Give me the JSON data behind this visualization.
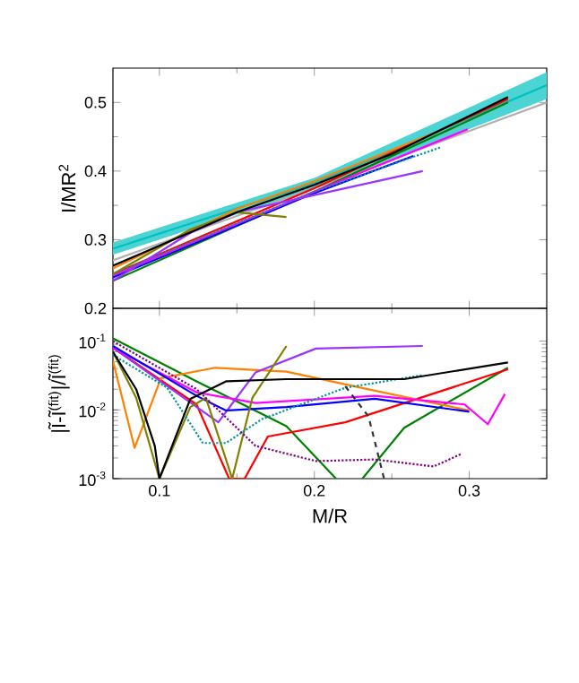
{
  "chart_data": [
    {
      "type": "line",
      "ylabel": "I/MR$^{2}$",
      "xlim": [
        0.07,
        0.35
      ],
      "ylim": [
        0.2,
        0.55
      ],
      "xticks": [
        0.1,
        0.2,
        0.3
      ],
      "yticks": [
        0.2,
        0.3,
        0.4,
        0.5
      ],
      "tick_labels": "y",
      "series": [
        {
          "color": "#00c0c0",
          "x": [
            0.07,
            0.2,
            0.35
          ],
          "values": [
            0.287,
            0.382,
            0.525
          ],
          "lower": [
            0.278,
            0.374,
            0.505
          ],
          "upper": [
            0.296,
            0.39,
            0.544
          ]
        },
        {
          "color": "#b0b0b0",
          "x": [
            0.07,
            0.2,
            0.35
          ],
          "values": [
            0.27,
            0.375,
            0.5
          ]
        },
        {
          "color": "#008000",
          "x": [
            0.07,
            0.2,
            0.325
          ],
          "values": [
            0.24,
            0.37,
            0.5
          ]
        },
        {
          "color": "#ff0000",
          "x": [
            0.07,
            0.2,
            0.325
          ],
          "values": [
            0.25,
            0.375,
            0.505
          ]
        },
        {
          "color": "#ff8000",
          "x": [
            0.07,
            0.15,
            0.2,
            0.28
          ],
          "values": [
            0.258,
            0.345,
            0.385,
            0.458
          ]
        },
        {
          "color": "#0000ff",
          "x": [
            0.07,
            0.2,
            0.264
          ],
          "values": [
            0.245,
            0.368,
            0.422
          ]
        },
        {
          "color": "#ff00ff",
          "x": [
            0.07,
            0.2,
            0.299
          ],
          "values": [
            0.248,
            0.37,
            0.461
          ]
        },
        {
          "color": "#009999",
          "line_style": "dotted",
          "x": [
            0.07,
            0.2,
            0.282
          ],
          "values": [
            0.25,
            0.37,
            0.435
          ]
        },
        {
          "color": "#9933ff",
          "x": [
            0.07,
            0.12,
            0.15,
            0.2,
            0.27
          ],
          "values": [
            0.24,
            0.31,
            0.34,
            0.365,
            0.4
          ]
        },
        {
          "color": "#808000",
          "x": [
            0.07,
            0.12,
            0.15,
            0.182
          ],
          "values": [
            0.25,
            0.315,
            0.34,
            0.333
          ]
        },
        {
          "color": "#000000",
          "x": [
            0.07,
            0.15,
            0.2,
            0.25,
            0.325
          ],
          "values": [
            0.262,
            0.34,
            0.38,
            0.425,
            0.508
          ]
        }
      ]
    },
    {
      "type": "line",
      "xlabel": "M/R",
      "ylabel": "|Ĩ-Ĩ$^{(fit)}$|/Ĩ$^{(fit)}$",
      "xlim": [
        0.07,
        0.35
      ],
      "ylim": [
        0.001,
        0.3
      ],
      "log": "y",
      "xticks": [
        0.1,
        0.2,
        0.3
      ],
      "yticks": [
        {
          "value": 0.001,
          "label": "10$^{-3}$"
        },
        {
          "value": 0.01,
          "label": "10$^{-2}$"
        },
        {
          "value": 0.1,
          "label": "10$^{-1}$"
        }
      ],
      "series": [
        {
          "color": "#008000",
          "x": [
            0.07,
            0.124,
            0.182,
            0.214
          ],
          "values": [
            0.11,
            0.026,
            0.0058,
            0.001
          ]
        },
        {
          "color": "#008000",
          "x": [
            0.231,
            0.258,
            0.325
          ],
          "values": [
            0.001,
            0.0055,
            0.041
          ]
        },
        {
          "color": "#ff0000",
          "x": [
            0.07,
            0.124,
            0.145,
            0.155,
            0.17,
            0.22,
            0.325
          ],
          "values": [
            0.08,
            0.012,
            0.001,
            0.001,
            0.0041,
            0.0066,
            0.039
          ]
        },
        {
          "color": "#ff8000",
          "x": [
            0.07,
            0.084,
            0.101,
            0.136,
            0.182,
            0.239,
            0.3
          ],
          "values": [
            0.052,
            0.0028,
            0.029,
            0.041,
            0.036,
            0.019,
            0.0098
          ]
        },
        {
          "color": "#9933ff",
          "x": [
            0.07,
            0.138,
            0.162,
            0.201,
            0.27
          ],
          "values": [
            0.08,
            0.0066,
            0.035,
            0.078,
            0.085
          ]
        },
        {
          "color": "#ff00ff",
          "x": [
            0.07,
            0.124,
            0.162,
            0.239,
            0.297,
            0.312,
            0.323
          ],
          "values": [
            0.08,
            0.018,
            0.0126,
            0.016,
            0.012,
            0.0062,
            0.017
          ]
        },
        {
          "color": "#0000ff",
          "x": [
            0.07,
            0.124,
            0.143,
            0.182,
            0.239,
            0.3
          ],
          "values": [
            0.085,
            0.016,
            0.0098,
            0.011,
            0.0145,
            0.0094
          ]
        },
        {
          "color": "#808000",
          "x": [
            0.07,
            0.085,
            0.1,
            0.12,
            0.13,
            0.147,
            0.16,
            0.182
          ],
          "values": [
            0.07,
            0.015,
            0.001,
            0.011,
            0.015,
            0.001,
            0.015,
            0.085
          ]
        },
        {
          "color": "#009999",
          "line_style": "dotted",
          "x": [
            0.07,
            0.105,
            0.128,
            0.143,
            0.166,
            0.22,
            0.27
          ],
          "values": [
            0.063,
            0.021,
            0.0033,
            0.0033,
            0.0073,
            0.021,
            0.032
          ]
        },
        {
          "color": "#800080",
          "line_style": "dotted",
          "x": [
            0.07,
            0.124,
            0.162,
            0.201,
            0.239,
            0.277,
            0.295
          ],
          "values": [
            0.1,
            0.02,
            0.003,
            0.0018,
            0.0019,
            0.0015,
            0.0023
          ]
        },
        {
          "color": "#333333",
          "line_style": "dashed",
          "x": [
            0.22,
            0.235,
            0.245
          ],
          "values": [
            0.022,
            0.008,
            0.001
          ]
        },
        {
          "color": "#000000",
          "x": [
            0.07,
            0.085,
            0.097,
            0.1,
            0.12,
            0.143,
            0.182,
            0.258,
            0.325
          ],
          "values": [
            0.07,
            0.02,
            0.003,
            0.001,
            0.0145,
            0.026,
            0.028,
            0.028,
            0.049
          ]
        }
      ]
    }
  ]
}
